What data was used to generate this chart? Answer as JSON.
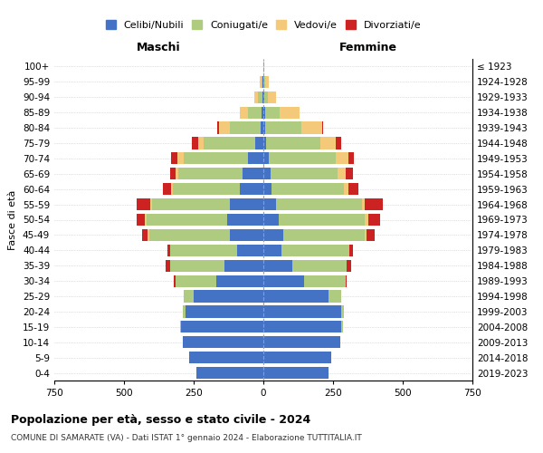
{
  "age_groups": [
    "0-4",
    "5-9",
    "10-14",
    "15-19",
    "20-24",
    "25-29",
    "30-34",
    "35-39",
    "40-44",
    "45-49",
    "50-54",
    "55-59",
    "60-64",
    "65-69",
    "70-74",
    "75-79",
    "80-84",
    "85-89",
    "90-94",
    "95-99",
    "100+"
  ],
  "birth_years": [
    "2019-2023",
    "2014-2018",
    "2009-2013",
    "2004-2008",
    "1999-2003",
    "1994-1998",
    "1989-1993",
    "1984-1988",
    "1979-1983",
    "1974-1978",
    "1969-1973",
    "1964-1968",
    "1959-1963",
    "1954-1958",
    "1949-1953",
    "1944-1948",
    "1939-1943",
    "1934-1938",
    "1929-1933",
    "1924-1928",
    "≤ 1923"
  ],
  "colors": {
    "celibe": "#4472C4",
    "coniugato": "#AECB80",
    "vedovo": "#F5C97A",
    "divorziato": "#CC2222"
  },
  "maschi": {
    "celibe": [
      240,
      265,
      290,
      295,
      280,
      250,
      170,
      140,
      95,
      120,
      130,
      120,
      85,
      75,
      55,
      30,
      10,
      5,
      3,
      2,
      0
    ],
    "coniugato": [
      0,
      0,
      0,
      5,
      10,
      35,
      145,
      195,
      240,
      290,
      290,
      280,
      240,
      230,
      230,
      185,
      110,
      50,
      18,
      5,
      0
    ],
    "vedovo": [
      0,
      0,
      0,
      0,
      0,
      0,
      0,
      0,
      0,
      5,
      5,
      5,
      5,
      10,
      25,
      20,
      40,
      30,
      12,
      5,
      0
    ],
    "divorziato": [
      0,
      0,
      0,
      0,
      0,
      0,
      5,
      15,
      10,
      20,
      30,
      50,
      30,
      20,
      20,
      20,
      5,
      0,
      0,
      0,
      0
    ]
  },
  "femmine": {
    "nubile": [
      235,
      245,
      275,
      280,
      280,
      235,
      145,
      105,
      65,
      70,
      55,
      45,
      30,
      25,
      20,
      10,
      5,
      5,
      2,
      1,
      0
    ],
    "coniugata": [
      0,
      0,
      0,
      5,
      10,
      45,
      150,
      195,
      245,
      295,
      310,
      310,
      260,
      240,
      240,
      195,
      130,
      55,
      15,
      5,
      0
    ],
    "vedova": [
      0,
      0,
      0,
      0,
      0,
      0,
      0,
      0,
      0,
      5,
      10,
      10,
      15,
      30,
      45,
      55,
      75,
      70,
      30,
      15,
      2
    ],
    "divorziata": [
      0,
      0,
      0,
      0,
      0,
      0,
      5,
      15,
      10,
      30,
      45,
      65,
      35,
      25,
      20,
      20,
      5,
      0,
      0,
      0,
      0
    ]
  },
  "xlim": 750,
  "title": "Popolazione per età, sesso e stato civile - 2024",
  "subtitle": "COMUNE DI SAMARATE (VA) - Dati ISTAT 1° gennaio 2024 - Elaborazione TUTTITALIA.IT",
  "ylabel_left": "Fasce di età",
  "xlabel_maschi": "Maschi",
  "xlabel_femmine": "Femmine",
  "legend_labels": [
    "Celibi/Nubili",
    "Coniugati/e",
    "Vedovi/e",
    "Divorziati/e"
  ],
  "background_color": "#ffffff",
  "grid_color": "#cccccc"
}
